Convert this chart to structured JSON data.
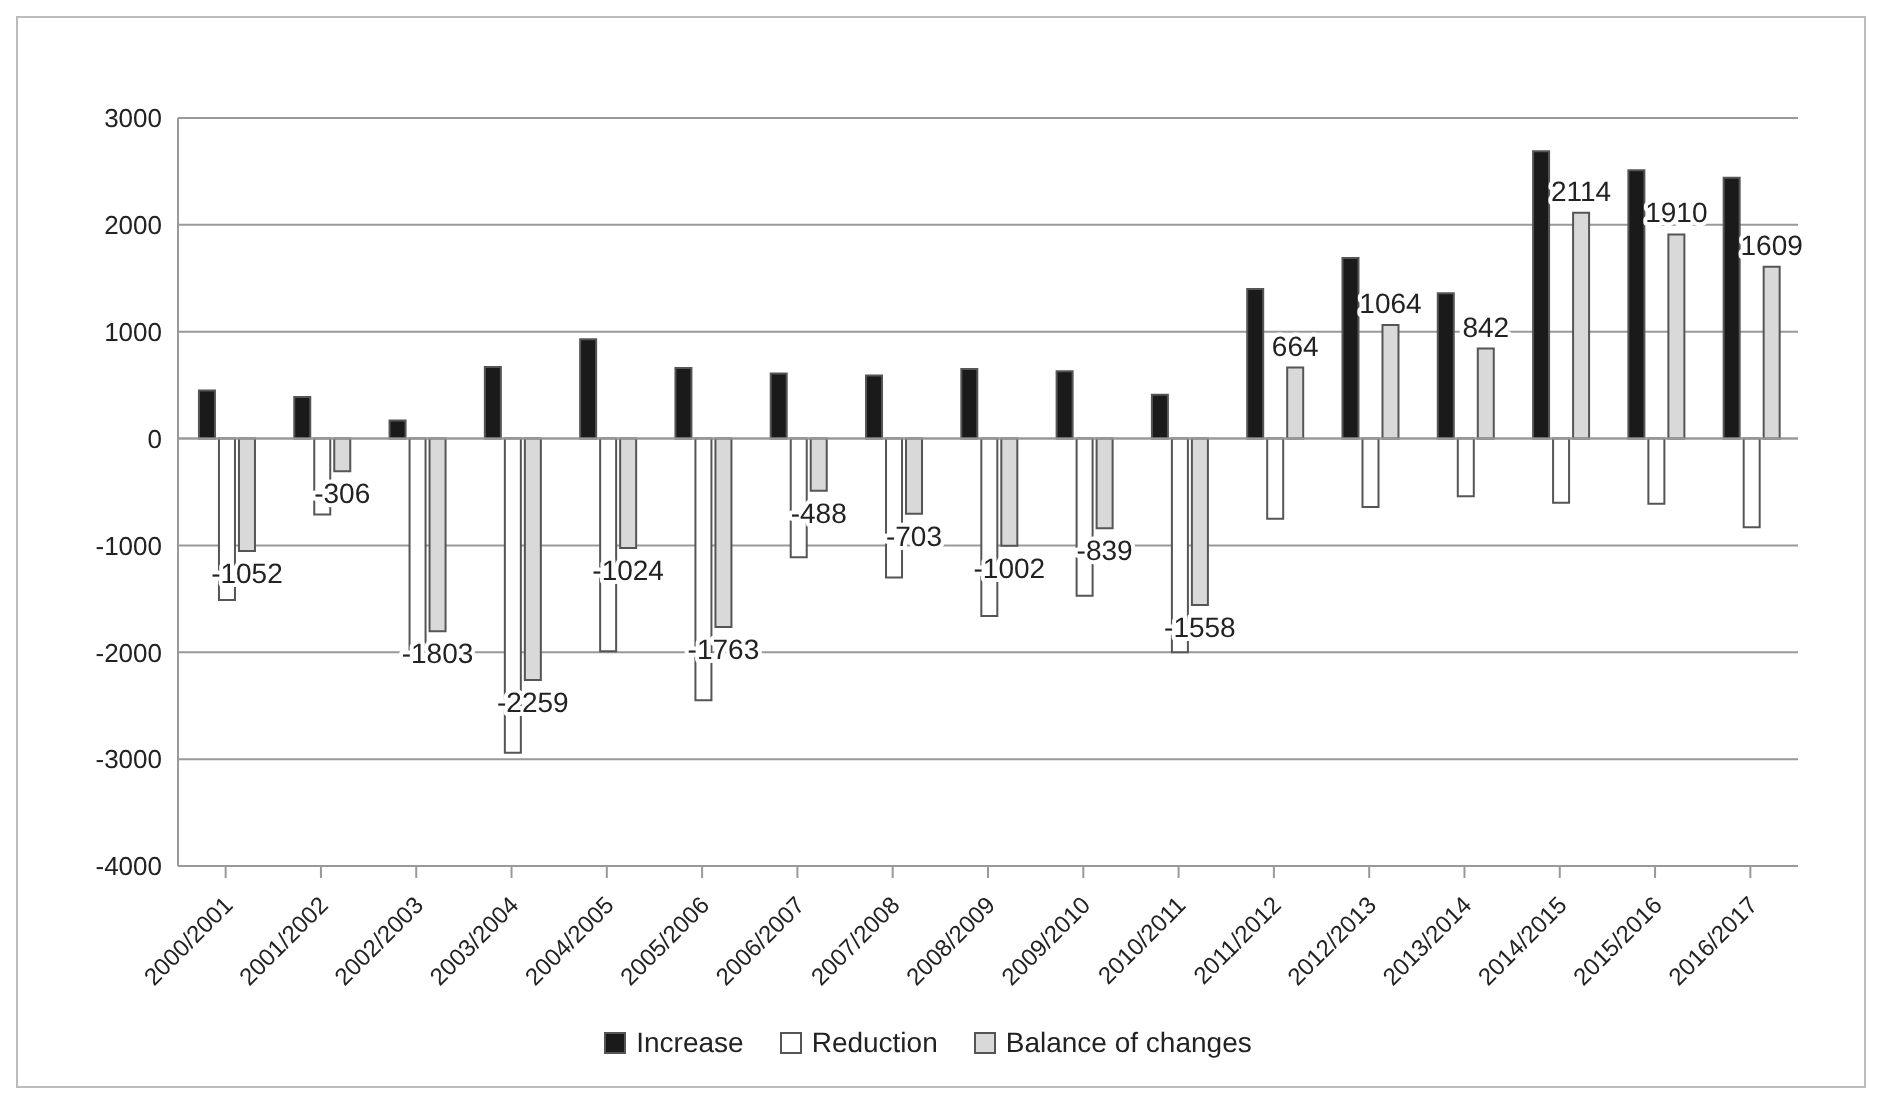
{
  "chart_data": {
    "type": "bar",
    "categories": [
      "2000/2001",
      "2001/2002",
      "2002/2003",
      "2003/2004",
      "2004/2005",
      "2005/2006",
      "2006/2007",
      "2007/2008",
      "2008/2009",
      "2009/2010",
      "2010/2011",
      "2011/2012",
      "2012/2013",
      "2013/2014",
      "2014/2015",
      "2015/2016",
      "2016/2017"
    ],
    "series": [
      {
        "name": "Increase",
        "color": "#1a1a1a",
        "values": [
          450,
          390,
          170,
          670,
          930,
          660,
          610,
          590,
          650,
          630,
          410,
          1400,
          1690,
          1360,
          2690,
          2510,
          2440
        ]
      },
      {
        "name": "Reduction",
        "color": "#ffffff",
        "values": [
          -1510,
          -710,
          -1990,
          -2940,
          -1990,
          -2450,
          -1110,
          -1300,
          -1660,
          -1470,
          -2000,
          -750,
          -640,
          -540,
          -600,
          -610,
          -830
        ]
      },
      {
        "name": "Balance of changes",
        "color": "#d9d9d9",
        "values": [
          -1052,
          -306,
          -1803,
          -2259,
          -1024,
          -1763,
          -488,
          -703,
          -1002,
          -839,
          -1558,
          664,
          1064,
          842,
          2114,
          1910,
          1609
        ],
        "value_labels": [
          "-1052",
          "-306",
          "-1803",
          "-2259",
          "-1024",
          "-1763",
          "-488",
          "-703",
          "-1002",
          "-839",
          "-1558",
          "664",
          "1064",
          "842",
          "2114",
          "1910",
          "1609"
        ]
      }
    ],
    "ylim": [
      -4000,
      3000
    ],
    "yticks": [
      -4000,
      -3000,
      -2000,
      -1000,
      0,
      1000,
      2000,
      3000
    ],
    "grid": "y",
    "legend": "bottom"
  }
}
